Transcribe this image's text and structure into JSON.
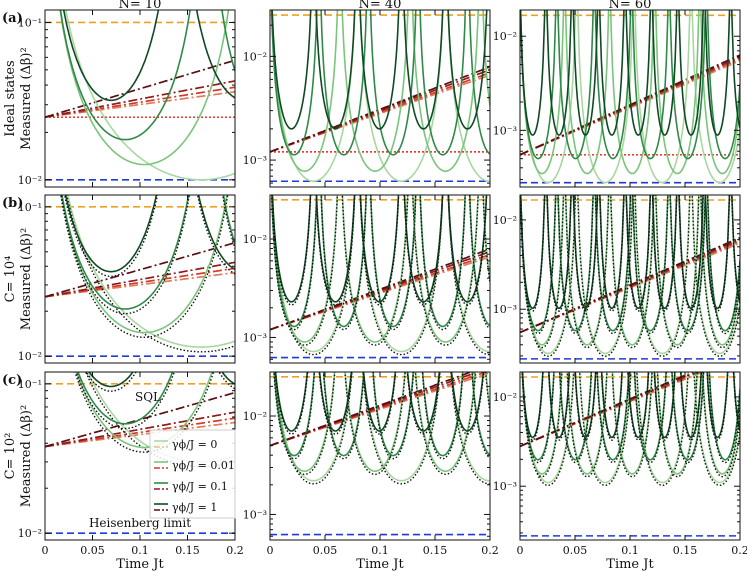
{
  "column_titles": [
    "N= 10",
    "N= 40",
    "N= 60"
  ],
  "row_labels": [
    {
      "tag": "(a)",
      "line1": "Ideal states",
      "line2": "Measured (Δβ)²"
    },
    {
      "tag": "(b)",
      "line1": "C= 10⁴",
      "line2": "Measured (Δβ)²"
    },
    {
      "tag": "(c)",
      "line1": "C= 10²",
      "line2": "Measured (Δβ)²"
    }
  ],
  "x_axis_label": "Time Jt",
  "x_tick_labels": [
    "0",
    "0.05",
    "0.1",
    "0.15",
    "0.2"
  ],
  "annotations": {
    "sql": "SQL",
    "heisenberg": "Heisenberg limit"
  },
  "legend": {
    "placement": "left-middle of panel (c), N=10",
    "entries": [
      {
        "label": "γϕ/J = 0",
        "colors": [
          "#f0c890",
          "#e9c086"
        ],
        "green": "#a8d8a0"
      },
      {
        "label": "γϕ/J = 0.01",
        "colors": [
          "#d43a2a"
        ],
        "green": "#7bc47c"
      },
      {
        "label": "γϕ/J = 0.1",
        "colors": [
          "#8e1a1a"
        ],
        "green": "#2f8a48"
      },
      {
        "label": "γϕ/J = 1",
        "colors": [
          "#5a0e12"
        ],
        "green": "#0f4a24"
      }
    ]
  },
  "colors": {
    "sql_line": "#f0a020",
    "heisenberg_line": "#1f3ad8",
    "ideal_reference": "#e0201a",
    "curve_greens": [
      "#a8d8a0",
      "#7bc47c",
      "#2f8a48",
      "#0f4a24"
    ],
    "curve_reds": [
      "#e37a5a",
      "#d43a2a",
      "#8e1a1a",
      "#5a0e12"
    ],
    "measured_dotted": "#111111"
  },
  "chart_data": [
    {
      "type": "line",
      "panel": "a-N10",
      "yscale": "log",
      "xlim": [
        0,
        0.2
      ],
      "ylim": [
        0.009,
        0.12
      ],
      "yticks": [
        0.01,
        0.1
      ],
      "ytick_labels": [
        "10⁻²",
        "10⁻¹"
      ],
      "sql": 0.1,
      "heisenberg": 0.01,
      "ideal_reference": 0.025
    },
    {
      "type": "line",
      "panel": "a-N40",
      "yscale": "log",
      "xlim": [
        0,
        0.2
      ],
      "ylim": [
        0.00055,
        0.028
      ],
      "yticks": [
        0.001,
        0.01
      ],
      "ytick_labels": [
        "10⁻³",
        "10⁻²"
      ],
      "sql": 0.025,
      "heisenberg": 0.000625,
      "ideal_reference": 0.0012
    },
    {
      "type": "line",
      "panel": "a-N60",
      "yscale": "log",
      "xlim": [
        0,
        0.2
      ],
      "ylim": [
        0.00025,
        0.019
      ],
      "yticks": [
        0.001,
        0.01
      ],
      "ytick_labels": [
        "10⁻³",
        "10⁻²"
      ],
      "sql": 0.0167,
      "heisenberg": 0.000278,
      "ideal_reference": 0.00055
    },
    {
      "type": "line",
      "panel": "b-N10",
      "yscale": "log",
      "xlim": [
        0,
        0.2
      ],
      "ylim": [
        0.009,
        0.12
      ],
      "yticks": [
        0.01,
        0.1
      ],
      "ytick_labels": [
        "10⁻²",
        "10⁻¹"
      ],
      "sql": 0.1,
      "heisenberg": 0.01
    },
    {
      "type": "line",
      "panel": "b-N40",
      "yscale": "log",
      "xlim": [
        0,
        0.2
      ],
      "ylim": [
        0.00055,
        0.028
      ],
      "yticks": [
        0.001,
        0.01
      ],
      "ytick_labels": [
        "10⁻³",
        "10⁻²"
      ],
      "sql": 0.025,
      "heisenberg": 0.000625
    },
    {
      "type": "line",
      "panel": "b-N60",
      "yscale": "log",
      "xlim": [
        0,
        0.2
      ],
      "ylim": [
        0.00025,
        0.019
      ],
      "yticks": [
        0.001,
        0.01
      ],
      "ytick_labels": [
        "10⁻³",
        "10⁻²"
      ],
      "sql": 0.0167,
      "heisenberg": 0.000278
    },
    {
      "type": "line",
      "panel": "c-N10",
      "yscale": "log",
      "xlim": [
        0,
        0.2
      ],
      "ylim": [
        0.009,
        0.12
      ],
      "yticks": [
        0.01,
        0.1
      ],
      "ytick_labels": [
        "10⁻²",
        "10⁻¹"
      ],
      "sql": 0.1,
      "heisenberg": 0.01
    },
    {
      "type": "line",
      "panel": "c-N40",
      "yscale": "log",
      "xlim": [
        0,
        0.2
      ],
      "ylim": [
        0.00055,
        0.028
      ],
      "yticks": [
        0.001,
        0.01
      ],
      "ytick_labels": [
        "10⁻³",
        "10⁻²"
      ],
      "sql": 0.025,
      "heisenberg": 0.000625
    },
    {
      "type": "line",
      "panel": "c-N60",
      "yscale": "log",
      "xlim": [
        0,
        0.2
      ],
      "ylim": [
        0.00025,
        0.019
      ],
      "yticks": [
        0.001,
        0.01
      ],
      "ytick_labels": [
        "10⁻³",
        "10⁻²"
      ],
      "sql": 0.0167,
      "heisenberg": 0.000278
    }
  ]
}
